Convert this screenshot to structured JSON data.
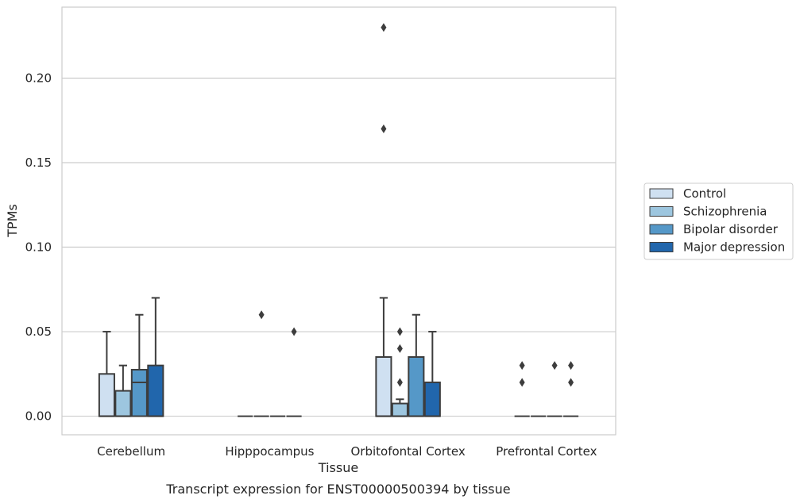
{
  "chart_data": {
    "type": "box",
    "title": "",
    "caption": "Transcript expression for ENST00000500394 by tissue",
    "xlabel": "Tissue",
    "ylabel": "TPMs",
    "ylim": [
      -0.011,
      0.242
    ],
    "yticks": [
      0.0,
      0.05,
      0.1,
      0.15,
      0.2
    ],
    "ytick_labels": [
      "0.00",
      "0.05",
      "0.10",
      "0.15",
      "0.20"
    ],
    "grid": true,
    "legend_position": "right",
    "categories": [
      "Cerebellum",
      "Hipppocampus",
      "Orbitofontal Cortex",
      "Prefrontal Cortex"
    ],
    "series": [
      {
        "name": "Control",
        "color": "#cfe0f1",
        "boxes": [
          {
            "q1": 0.0,
            "median": 0.0,
            "q3": 0.025,
            "whisker_low": 0.0,
            "whisker_high": 0.05,
            "outliers": []
          },
          {
            "q1": 0.0,
            "median": 0.0,
            "q3": 0.0,
            "whisker_low": 0.0,
            "whisker_high": 0.0,
            "outliers": []
          },
          {
            "q1": 0.0,
            "median": 0.0,
            "q3": 0.035,
            "whisker_low": 0.0,
            "whisker_high": 0.07,
            "outliers": [
              0.17,
              0.23
            ]
          },
          {
            "q1": 0.0,
            "median": 0.0,
            "q3": 0.0,
            "whisker_low": 0.0,
            "whisker_high": 0.0,
            "outliers": [
              0.02,
              0.03
            ]
          }
        ]
      },
      {
        "name": "Schizophrenia",
        "color": "#9dc6df",
        "boxes": [
          {
            "q1": 0.0,
            "median": 0.0,
            "q3": 0.015,
            "whisker_low": 0.0,
            "whisker_high": 0.03,
            "outliers": []
          },
          {
            "q1": 0.0,
            "median": 0.0,
            "q3": 0.0,
            "whisker_low": 0.0,
            "whisker_high": 0.0,
            "outliers": [
              0.06
            ]
          },
          {
            "q1": 0.0,
            "median": 0.0,
            "q3": 0.0075,
            "whisker_low": 0.0,
            "whisker_high": 0.01,
            "outliers": [
              0.02,
              0.04,
              0.05
            ]
          },
          {
            "q1": 0.0,
            "median": 0.0,
            "q3": 0.0,
            "whisker_low": 0.0,
            "whisker_high": 0.0,
            "outliers": []
          }
        ]
      },
      {
        "name": "Bipolar disorder",
        "color": "#5598c8",
        "boxes": [
          {
            "q1": 0.0,
            "median": 0.02,
            "q3": 0.0275,
            "whisker_low": 0.0,
            "whisker_high": 0.06,
            "outliers": []
          },
          {
            "q1": 0.0,
            "median": 0.0,
            "q3": 0.0,
            "whisker_low": 0.0,
            "whisker_high": 0.0,
            "outliers": []
          },
          {
            "q1": 0.0,
            "median": 0.0,
            "q3": 0.035,
            "whisker_low": 0.0,
            "whisker_high": 0.06,
            "outliers": []
          },
          {
            "q1": 0.0,
            "median": 0.0,
            "q3": 0.0,
            "whisker_low": 0.0,
            "whisker_high": 0.0,
            "outliers": [
              0.03
            ]
          }
        ]
      },
      {
        "name": "Major depression",
        "color": "#2166ac",
        "boxes": [
          {
            "q1": 0.0,
            "median": 0.0,
            "q3": 0.03,
            "whisker_low": 0.0,
            "whisker_high": 0.07,
            "outliers": []
          },
          {
            "q1": 0.0,
            "median": 0.0,
            "q3": 0.0,
            "whisker_low": 0.0,
            "whisker_high": 0.0,
            "outliers": [
              0.05
            ]
          },
          {
            "q1": 0.0,
            "median": 0.0,
            "q3": 0.02,
            "whisker_low": 0.0,
            "whisker_high": 0.05,
            "outliers": []
          },
          {
            "q1": 0.0,
            "median": 0.0,
            "q3": 0.0,
            "whisker_low": 0.0,
            "whisker_high": 0.0,
            "outliers": [
              0.02,
              0.03
            ]
          }
        ]
      }
    ]
  }
}
